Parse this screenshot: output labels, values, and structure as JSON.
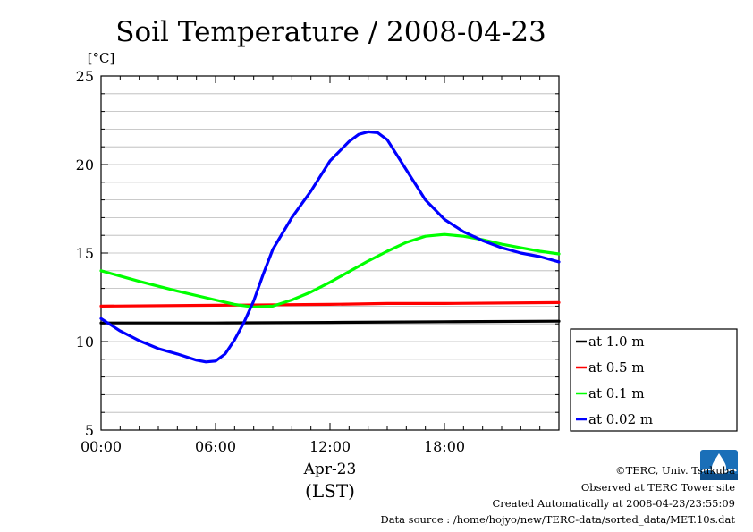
{
  "chart_data": {
    "type": "line",
    "title": "Soil Temperature / 2008-04-23",
    "ylabel": "[°C]",
    "xlabel_date": "Apr-23",
    "xlabel_tz": "(LST)",
    "ylim": [
      5,
      25
    ],
    "xlim_hours": [
      0,
      24
    ],
    "yticks": [
      5,
      10,
      15,
      20,
      25
    ],
    "ytick_labels": [
      "5",
      "10",
      "15",
      "20",
      "25"
    ],
    "xticks_hours": [
      0,
      6,
      12,
      18
    ],
    "xtick_labels": [
      "00:00",
      "06:00",
      "12:00",
      "18:00"
    ],
    "grid": true,
    "legend_position": "right",
    "series": [
      {
        "name": "at 1.0 m",
        "color": "#000000",
        "x": [
          0,
          6,
          12,
          18,
          24
        ],
        "y": [
          11.05,
          11.05,
          11.08,
          11.12,
          11.15
        ]
      },
      {
        "name": "at 0.5 m",
        "color": "#ff0000",
        "x": [
          0,
          6,
          12,
          15,
          18,
          24
        ],
        "y": [
          12.0,
          12.05,
          12.1,
          12.15,
          12.15,
          12.2
        ]
      },
      {
        "name": "at 0.1 m",
        "color": "#00ff00",
        "x": [
          0,
          2,
          4,
          6,
          7,
          8,
          9,
          10,
          11,
          12,
          13,
          14,
          15,
          16,
          17,
          18,
          19,
          20,
          21,
          22,
          23,
          24
        ],
        "y": [
          14.0,
          13.4,
          12.85,
          12.35,
          12.1,
          11.95,
          12.0,
          12.35,
          12.8,
          13.35,
          13.95,
          14.55,
          15.1,
          15.6,
          15.95,
          16.05,
          15.95,
          15.75,
          15.5,
          15.3,
          15.1,
          14.95
        ]
      },
      {
        "name": "at 0.02 m",
        "color": "#0000ff",
        "x": [
          0,
          1,
          2,
          3,
          4,
          5,
          5.5,
          6,
          6.5,
          7,
          7.5,
          8,
          8.5,
          9,
          10,
          11,
          12,
          13,
          13.5,
          14,
          14.5,
          15,
          16,
          17,
          18,
          19,
          20,
          21,
          22,
          23,
          24
        ],
        "y": [
          11.3,
          10.6,
          10.05,
          9.6,
          9.3,
          8.95,
          8.85,
          8.9,
          9.3,
          10.1,
          11.1,
          12.3,
          13.8,
          15.2,
          17.0,
          18.5,
          20.2,
          21.3,
          21.7,
          21.85,
          21.8,
          21.4,
          19.7,
          18.0,
          16.9,
          16.2,
          15.7,
          15.3,
          15.0,
          14.8,
          14.5
        ]
      }
    ]
  },
  "credits": {
    "copyright": "©TERC, Univ. Tsukuba",
    "observed": "Observed at TERC Tower site",
    "created": "Created Automatically at 2008-04-23/23:55:09",
    "source": "Data source : /home/hojyo/new/TERC-data/sorted_data/MET.10s.dat"
  }
}
